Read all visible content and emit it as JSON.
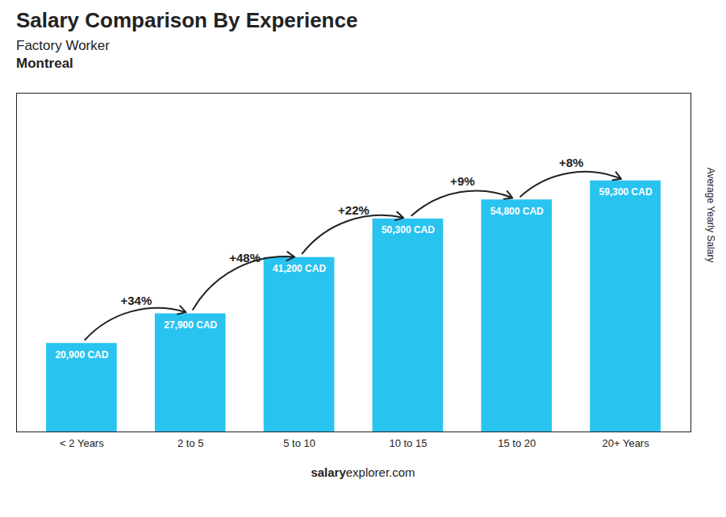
{
  "chart_data": {
    "type": "bar",
    "title": "Salary Comparison By Experience",
    "subtitle": [
      "Factory Worker",
      "Montreal"
    ],
    "categories": [
      "< 2 Years",
      "2 to 5",
      "5 to 10",
      "10 to 15",
      "15 to 20",
      "20+ Years"
    ],
    "values": [
      20900,
      27900,
      41200,
      50300,
      54800,
      59300
    ],
    "value_labels": [
      "20,900 CAD",
      "27,900 CAD",
      "41,200 CAD",
      "50,300 CAD",
      "54,800 CAD",
      "59,300 CAD"
    ],
    "data_labels": true,
    "annotations": [
      "+34%",
      "+48%",
      "+22%",
      "+9%",
      "+8%"
    ],
    "caption": [
      "salary",
      "explorer.com"
    ],
    "y_label": "Average Yearly Salary",
    "ylim": [
      0,
      80000
    ],
    "tick_labels": "x",
    "grid": false,
    "color": "#29C3F0"
  }
}
